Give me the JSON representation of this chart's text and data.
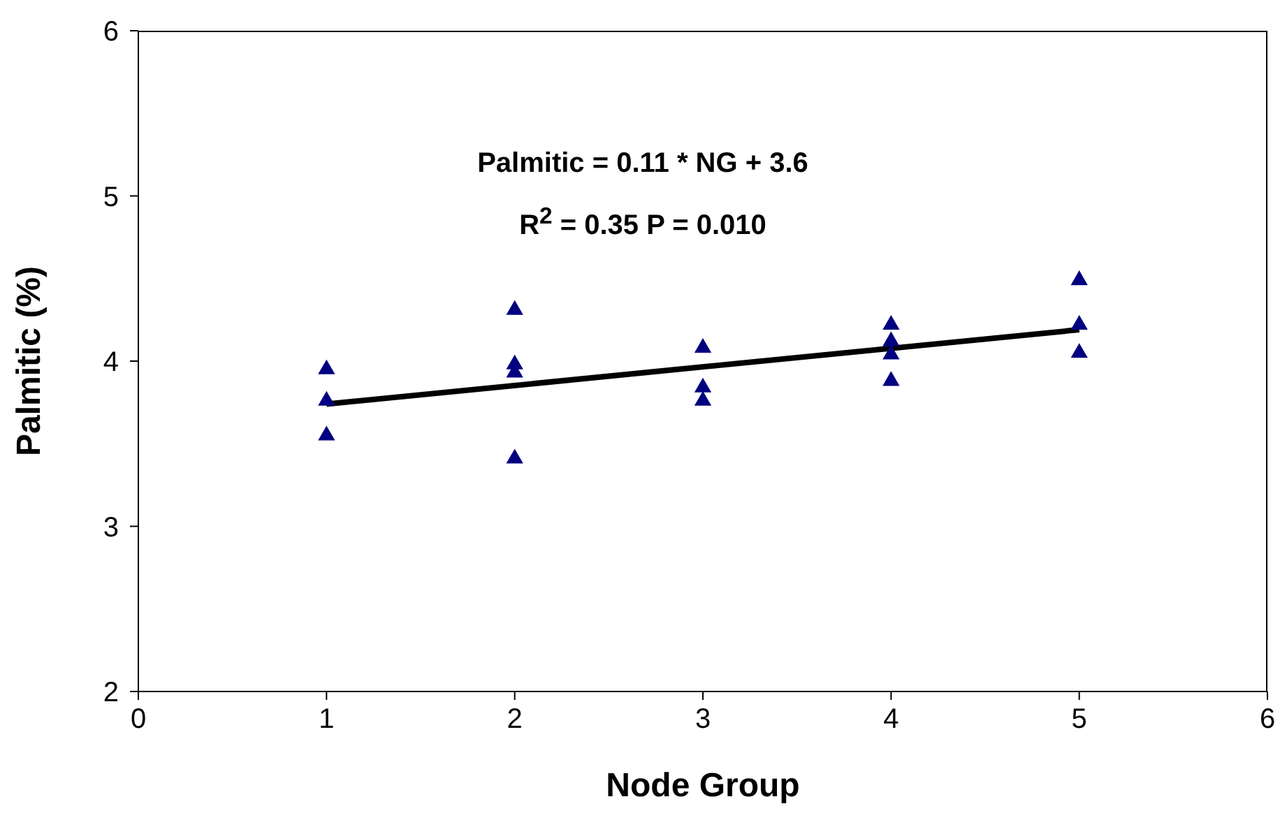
{
  "chart_data": {
    "type": "scatter",
    "xlabel": "Node Group",
    "ylabel": "Palmitic (%)",
    "annotations": [
      "Palmitic = 0.11 * NG + 3.6",
      "R$^{2}$ = 0.35  P = 0.010"
    ],
    "xlim": [
      0,
      6
    ],
    "xticks": [
      0,
      1,
      2,
      3,
      4,
      5,
      6
    ],
    "ylim": [
      2,
      6
    ],
    "yticks": [
      2,
      3,
      4,
      5,
      6
    ],
    "grid": false,
    "legend": false,
    "marker": "triangle",
    "series": [
      {
        "color": "#000080",
        "x": [
          1,
          1,
          1,
          2,
          2,
          2,
          2,
          3,
          3,
          3,
          4,
          4,
          4,
          4,
          5,
          5,
          5
        ],
        "values": [
          3.95,
          3.76,
          3.55,
          4.31,
          3.98,
          3.93,
          3.41,
          4.08,
          3.84,
          3.76,
          4.22,
          4.12,
          4.04,
          3.88,
          4.49,
          4.22,
          4.05
        ]
      },
      {
        "type": "line",
        "color": "#000000",
        "marker": "none",
        "x": [
          1,
          5
        ],
        "values": [
          3.74,
          4.19
        ]
      }
    ]
  }
}
